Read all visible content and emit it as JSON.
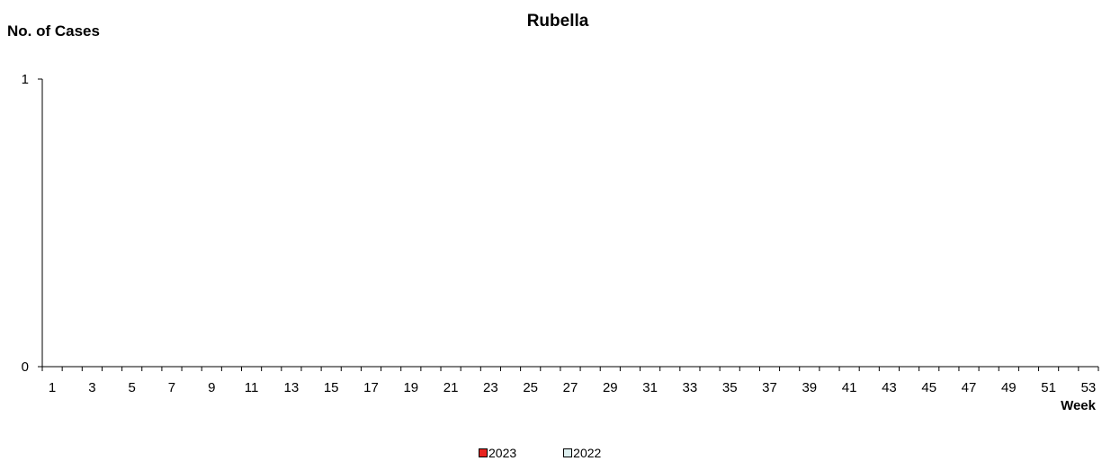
{
  "chart_data": {
    "type": "bar",
    "title": "Rubella",
    "ylabel": "No. of Cases",
    "xlabel": "Week",
    "ylim": [
      0,
      1
    ],
    "yticks": [
      0,
      1
    ],
    "categories": [
      1,
      2,
      3,
      4,
      5,
      6,
      7,
      8,
      9,
      10,
      11,
      12,
      13,
      14,
      15,
      16,
      17,
      18,
      19,
      20,
      21,
      22,
      23,
      24,
      25,
      26,
      27,
      28,
      29,
      30,
      31,
      32,
      33,
      34,
      35,
      36,
      37,
      38,
      39,
      40,
      41,
      42,
      43,
      44,
      45,
      46,
      47,
      48,
      49,
      50,
      51,
      52,
      53
    ],
    "tick_labels": [
      "1",
      "3",
      "5",
      "7",
      "9",
      "11",
      "13",
      "15",
      "17",
      "19",
      "21",
      "23",
      "25",
      "27",
      "29",
      "31",
      "33",
      "35",
      "37",
      "39",
      "41",
      "43",
      "45",
      "47",
      "49",
      "51",
      "53"
    ],
    "series": [
      {
        "name": "2023",
        "color": "#e8231f",
        "values": [
          0,
          0,
          0,
          0,
          0,
          0,
          0,
          0,
          0,
          0,
          0,
          0,
          0,
          0,
          0,
          0,
          0,
          0,
          0,
          0,
          0,
          0,
          0,
          0,
          0,
          0,
          0,
          0,
          0,
          0,
          0,
          0,
          0,
          0,
          0,
          0,
          0,
          0,
          0,
          0,
          0,
          0,
          0,
          0,
          0,
          0,
          0,
          0,
          0,
          0,
          0,
          0,
          0
        ]
      },
      {
        "name": "2022",
        "color": "#ddefef",
        "values": [
          0,
          0,
          0,
          0,
          0,
          0,
          0,
          0,
          0,
          0,
          0,
          0,
          0,
          0,
          0,
          0,
          0,
          0,
          0,
          0,
          0,
          0,
          0,
          0,
          0,
          0,
          0,
          0,
          0,
          0,
          0,
          0,
          0,
          0,
          0,
          0,
          0,
          0,
          0,
          0,
          0,
          0,
          0,
          0,
          0,
          0,
          0,
          0,
          0,
          0,
          0,
          0,
          0
        ]
      }
    ],
    "grid": false,
    "legend": "bottom"
  }
}
